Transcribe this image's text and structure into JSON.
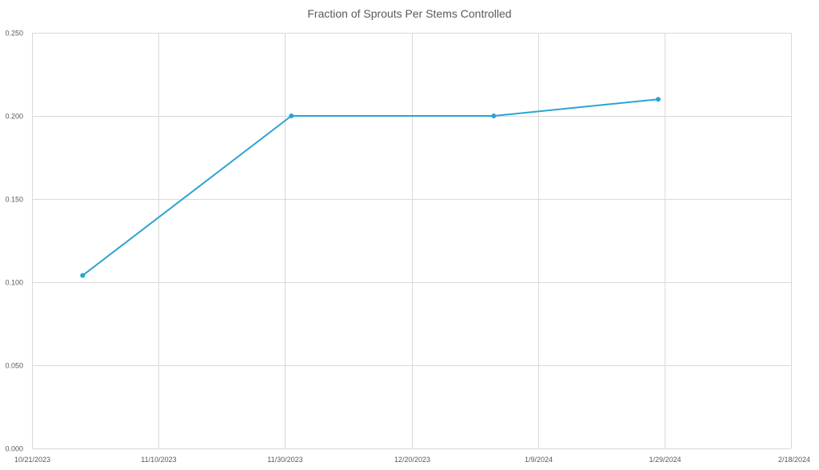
{
  "chart_data": {
    "type": "line",
    "title": "Fraction of Sprouts Per Stems Controlled",
    "xlabel": "",
    "ylabel": "",
    "x_axis_type": "date",
    "xlim": [
      "2023-10-21",
      "2024-02-18"
    ],
    "x_ticks": [
      {
        "date": "2023-10-21",
        "label": "10/21/2023"
      },
      {
        "date": "2023-11-10",
        "label": "11/10/2023"
      },
      {
        "date": "2023-11-30",
        "label": "11/30/2023"
      },
      {
        "date": "2023-12-20",
        "label": "12/20/2023"
      },
      {
        "date": "2024-01-09",
        "label": "1/9/2024"
      },
      {
        "date": "2024-01-29",
        "label": "1/29/2024"
      },
      {
        "date": "2024-02-18",
        "label": "2/18/2024"
      }
    ],
    "ylim": [
      0,
      0.25
    ],
    "y_ticks": [
      {
        "value": 0,
        "label": "0.000"
      },
      {
        "value": 0.05,
        "label": "0.050"
      },
      {
        "value": 0.1,
        "label": "0.100"
      },
      {
        "value": 0.15,
        "label": "0.150"
      },
      {
        "value": 0.2,
        "label": "0.200"
      },
      {
        "value": 0.25,
        "label": "0.250"
      }
    ],
    "grid": true,
    "legend": "none",
    "series": [
      {
        "color": "#2aa3d3",
        "points": [
          {
            "x": "2023-10-29",
            "y": 0.104
          },
          {
            "x": "2023-12-01",
            "y": 0.2
          },
          {
            "x": "2024-01-02",
            "y": 0.2
          },
          {
            "x": "2024-01-28",
            "y": 0.21
          }
        ]
      }
    ]
  },
  "colors": {
    "grid": "#d9d9d9",
    "axis_text": "#595959",
    "title": "#595959"
  }
}
